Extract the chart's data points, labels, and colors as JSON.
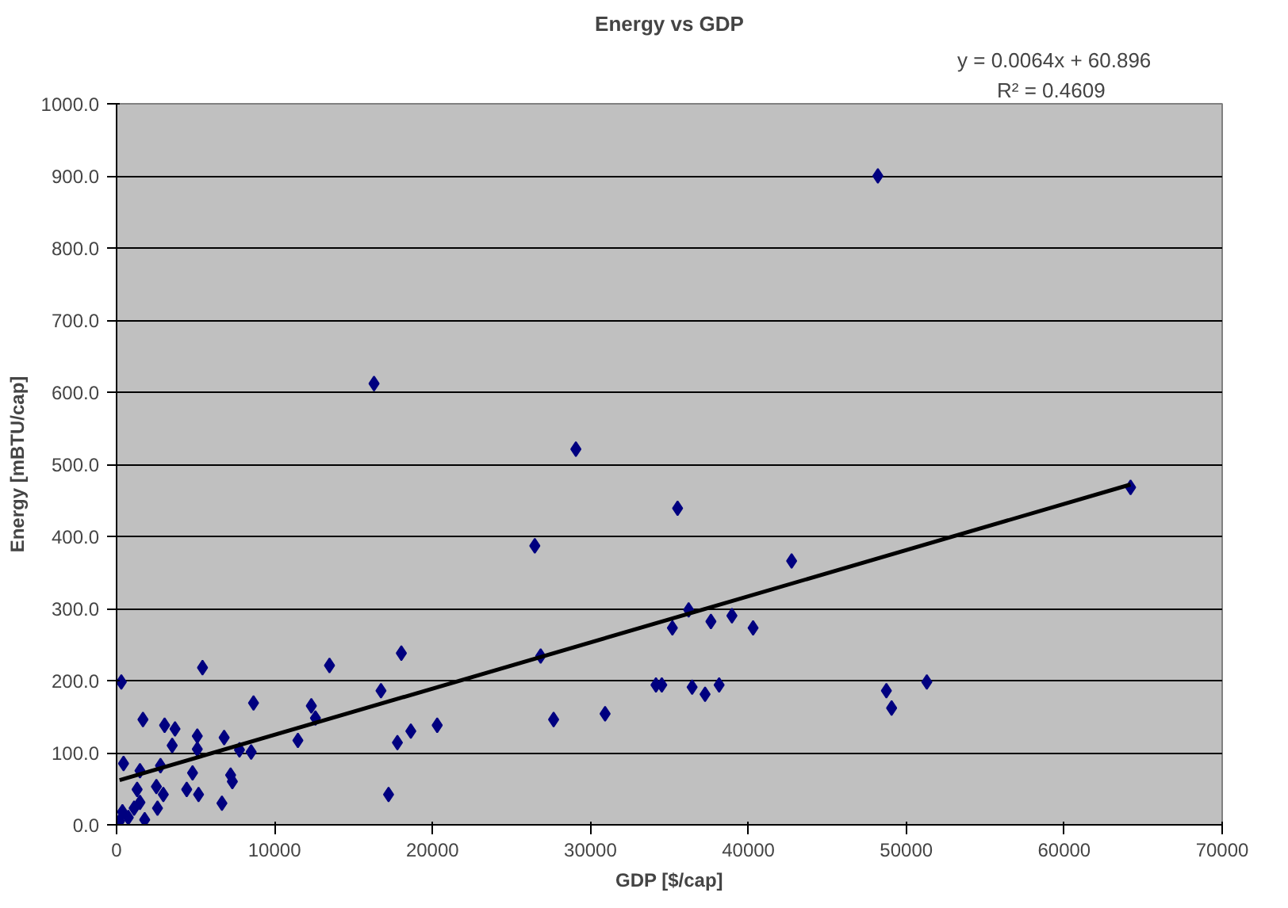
{
  "chart_data": {
    "type": "scatter",
    "title": "Energy vs GDP",
    "xlabel": "GDP [$/cap]",
    "ylabel": "Energy [mBTU/cap]",
    "xlim": [
      0,
      70000
    ],
    "xticks": [
      0,
      10000,
      20000,
      30000,
      40000,
      50000,
      60000,
      70000
    ],
    "ylim": [
      0,
      1000
    ],
    "yticks": [
      {
        "value": 0,
        "label": "0.0"
      },
      {
        "value": 100,
        "label": "100.0"
      },
      {
        "value": 200,
        "label": "200.0"
      },
      {
        "value": 300,
        "label": "300.0"
      },
      {
        "value": 400,
        "label": "400.0"
      },
      {
        "value": 500,
        "label": "500.0"
      },
      {
        "value": 600,
        "label": "600.0"
      },
      {
        "value": 700,
        "label": "700.0"
      },
      {
        "value": 800,
        "label": "800.0"
      },
      {
        "value": 900,
        "label": "900.0"
      },
      {
        "value": 1000,
        "label": "1000.0"
      }
    ],
    "grid": "y",
    "marker": "diamond",
    "annotations": [
      "y = 0.0064x + 60.896",
      "R² = 0.4609"
    ],
    "series": [
      {
        "color": "#000080",
        "x": [
          48200,
          16300,
          29080,
          35520,
          26480,
          64200,
          42740,
          36220,
          35190,
          37630,
          38960,
          40300,
          34150,
          34520,
          36440,
          37260,
          38150,
          48740,
          49070,
          51300,
          18030,
          26850,
          18630,
          20300,
          17780,
          27670,
          30930,
          17220,
          300,
          5440,
          13480,
          16740,
          12330,
          12590,
          8670,
          11480,
          1670,
          3040,
          3700,
          3520,
          5110,
          5110,
          6810,
          7780,
          8520,
          440,
          1480,
          2780,
          4810,
          7220,
          7330,
          6670,
          4440,
          5190,
          2520,
          1300,
          2960,
          2590,
          1480,
          1780,
          370,
          190,
          740,
          1110
        ],
        "values": [
          900,
          612,
          521,
          439,
          387,
          468,
          366,
          298,
          273,
          282,
          290,
          273,
          194,
          194,
          191,
          181,
          194,
          186,
          162,
          198,
          238,
          234,
          130,
          138,
          114,
          146,
          154,
          42,
          198,
          218,
          221,
          186,
          165,
          148,
          169,
          117,
          146,
          138,
          133,
          110,
          123,
          105,
          121,
          104,
          101,
          85,
          75,
          82,
          72,
          69,
          60,
          30,
          49,
          42,
          53,
          49,
          42,
          23,
          31,
          7,
          18,
          5,
          10,
          23
        ]
      },
      {
        "type": "line",
        "color": "#000000",
        "marker": "none",
        "x": [
          190,
          64200
        ],
        "values": [
          62,
          472
        ]
      }
    ]
  }
}
